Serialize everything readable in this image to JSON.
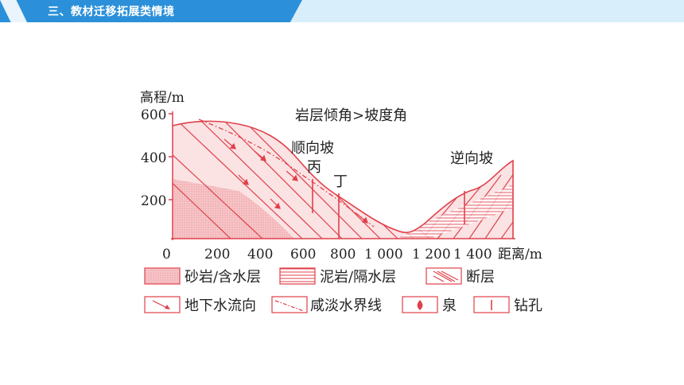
{
  "header": {
    "title": "三、教材迁移拓展类情境"
  },
  "diagram": {
    "y_axis_title": "高程/m",
    "x_axis_title": "距离/m",
    "y_ticks": [
      "600",
      "400",
      "200"
    ],
    "x_ticks": [
      "0",
      "200",
      "400",
      "600",
      "800",
      "1 000",
      "1 200",
      "1 400"
    ],
    "annotation": "岩层倾角>坡度角",
    "slope_left": "顺向坡",
    "slope_right": "逆向坡",
    "point_bing": "丙",
    "point_ding": "丁"
  },
  "legend": {
    "sandstone": "砂岩/含水层",
    "mudstone": "泥岩/隔水层",
    "fault": "断层",
    "groundwater_flow": "地下水流向",
    "saltwater_boundary": "咸淡水界线",
    "spring": "泉",
    "borehole": "钻孔"
  },
  "colors": {
    "accent": "#2b90d9",
    "diagram_red": "#e0404a",
    "fill_pink": "#f6c6c8"
  }
}
